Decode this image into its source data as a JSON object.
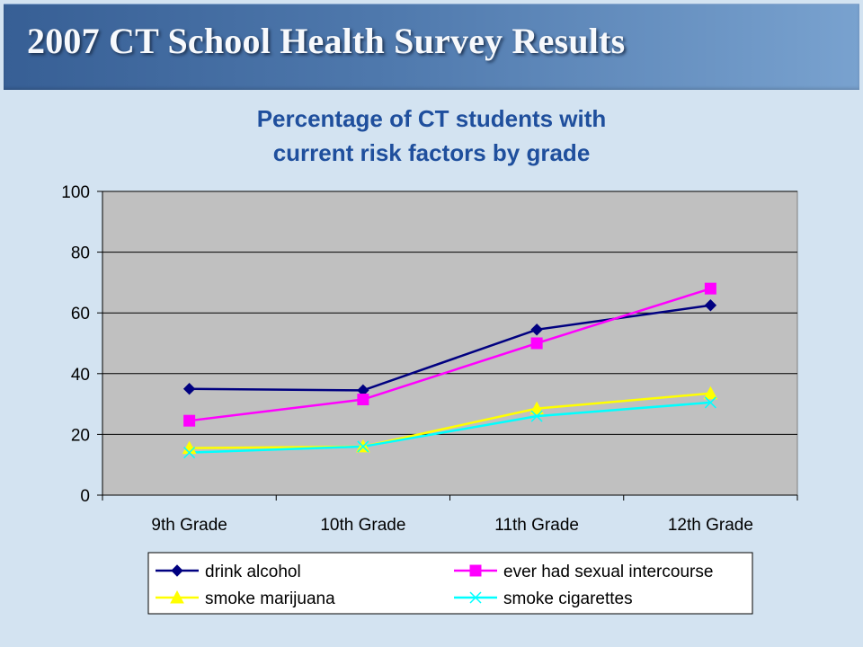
{
  "header": {
    "title": "2007 CT School Health Survey Results"
  },
  "chart_data": {
    "type": "line",
    "title_line1": "Percentage of CT students with",
    "title_line2": "current risk factors by grade",
    "categories": [
      "9th Grade",
      "10th  Grade",
      "11th  Grade",
      "12th  Grade"
    ],
    "ylim": [
      0,
      100
    ],
    "yticks": [
      0,
      20,
      40,
      60,
      80,
      100
    ],
    "grid": true,
    "legend_position": "bottom",
    "plot_background": "#c0c0c0",
    "series": [
      {
        "name": "drink alcohol",
        "values": [
          35,
          34.5,
          54.5,
          62.5
        ],
        "color": "#000080",
        "marker": "diamond"
      },
      {
        "name": "ever had sexual intercourse",
        "values": [
          24.5,
          31.5,
          50,
          68
        ],
        "color": "#ff00ff",
        "marker": "square"
      },
      {
        "name": "smoke marijuana",
        "values": [
          15.5,
          16,
          28.5,
          33.5
        ],
        "color": "#ffff00",
        "marker": "triangle"
      },
      {
        "name": "smoke cigarettes",
        "values": [
          14,
          16,
          26,
          30.5
        ],
        "color": "#00ffff",
        "marker": "x"
      }
    ]
  }
}
